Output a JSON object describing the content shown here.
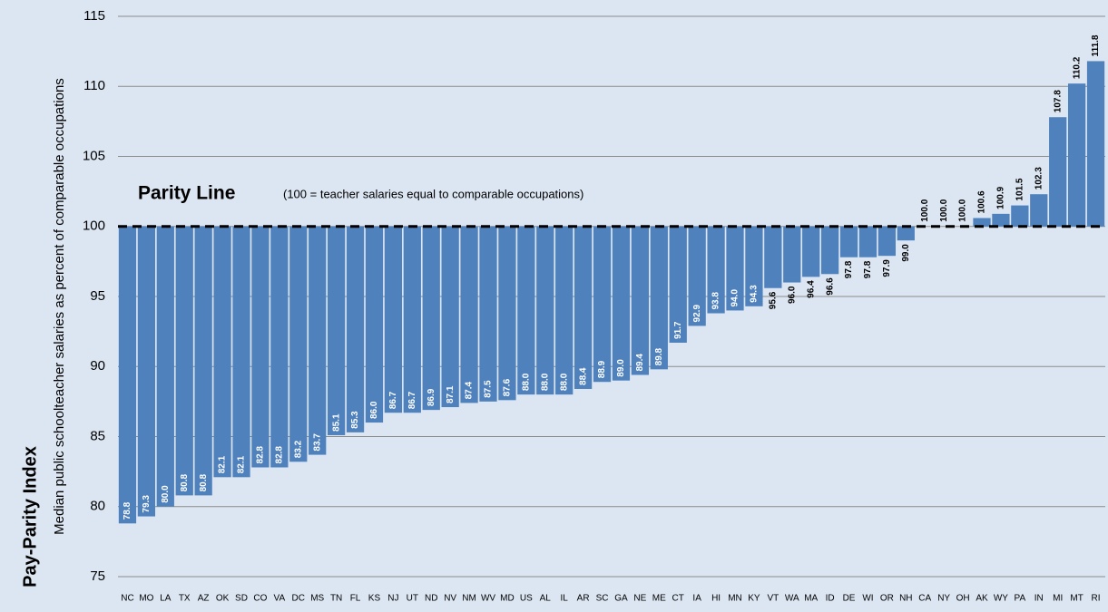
{
  "chart_data": {
    "type": "bar",
    "ylabel": "Pay-Parity Index",
    "ylabel_sub": "Median public schoolteacher salaries as percent of comparable occupations",
    "annotation_title": "Parity Line",
    "annotation_note": "(100 = teacher salaries equal to comparable occupations)",
    "parity_value": 100,
    "categories": [
      "NC",
      "MO",
      "LA",
      "TX",
      "AZ",
      "OK",
      "SD",
      "CO",
      "VA",
      "DC",
      "MS",
      "TN",
      "FL",
      "KS",
      "NJ",
      "UT",
      "ND",
      "NV",
      "NM",
      "WV",
      "MD",
      "US",
      "AL",
      "IL",
      "AR",
      "SC",
      "GA",
      "NE",
      "ME",
      "CT",
      "IA",
      "HI",
      "MN",
      "KY",
      "VT",
      "WA",
      "MA",
      "ID",
      "DE",
      "WI",
      "OR",
      "NH",
      "CA",
      "NY",
      "OH",
      "AK",
      "WY",
      "PA",
      "IN",
      "MI",
      "MT",
      "RI"
    ],
    "values": [
      78.8,
      79.3,
      80.0,
      80.8,
      80.8,
      82.1,
      82.1,
      82.8,
      82.8,
      83.2,
      83.7,
      85.1,
      85.3,
      86.0,
      86.7,
      86.7,
      86.9,
      87.1,
      87.4,
      87.5,
      87.6,
      88.0,
      88.0,
      88.0,
      88.4,
      88.9,
      89.0,
      89.4,
      89.8,
      91.7,
      92.9,
      93.8,
      94.0,
      94.3,
      95.6,
      96.0,
      96.4,
      96.6,
      97.8,
      97.8,
      97.9,
      99.0,
      100.0,
      100.0,
      100.0,
      100.6,
      100.9,
      101.5,
      102.3,
      107.8,
      110.2,
      111.8
    ],
    "value_labels": [
      "78.8",
      "79.3",
      "80.0",
      "80.8",
      "80.8",
      "82.1",
      "82.1",
      "82.8",
      "82.8",
      "83.2",
      "83.7",
      "85.1",
      "85.3",
      "86.0",
      "86.7",
      "86.7",
      "86.9",
      "87.1",
      "87.4",
      "87.5",
      "87.6",
      "88.0",
      "88.0",
      "88.0",
      "88.4",
      "88.9",
      "89.0",
      "89.4",
      "89.8",
      "91.7",
      "92.9",
      "93.8",
      "94.0",
      "94.3",
      "95.6",
      "96.0",
      "96.4",
      "96.6",
      "97.8",
      "97.8",
      "97.9",
      "99.0",
      "100.0",
      "100.0",
      "100.0",
      "100.6",
      "100.9",
      "101.5",
      "102.3",
      "107.8",
      "110.2",
      "111.8"
    ],
    "color": "#4f81bd",
    "ylim": [
      75,
      115
    ],
    "yticks": [
      75,
      80,
      85,
      90,
      95,
      100,
      105,
      110,
      115
    ],
    "grid": true
  }
}
